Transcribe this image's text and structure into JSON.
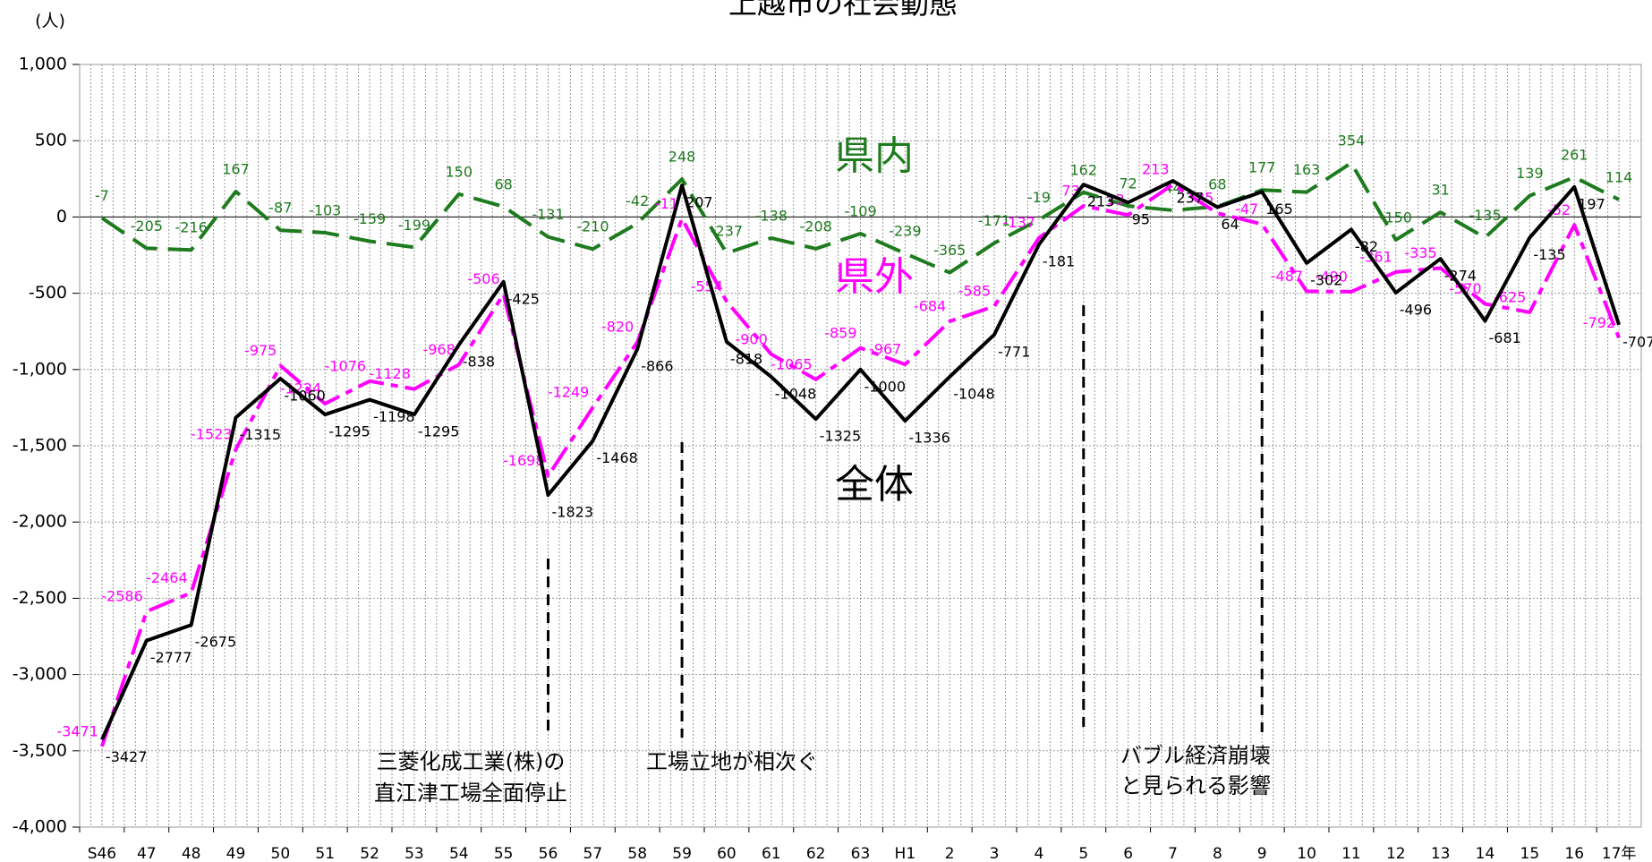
{
  "chart_data": {
    "type": "line",
    "title": "上越市の社会動態",
    "y_unit": "(人)",
    "categories": [
      "S46",
      "47",
      "48",
      "49",
      "50",
      "51",
      "52",
      "53",
      "54",
      "55",
      "56",
      "57",
      "58",
      "59",
      "60",
      "61",
      "62",
      "63",
      "H1",
      "2",
      "3",
      "4",
      "5",
      "6",
      "7",
      "8",
      "9",
      "10",
      "11",
      "12",
      "13",
      "14",
      "15",
      "16",
      "17年"
    ],
    "series": [
      {
        "name": "県内",
        "color": "#1e7b1e",
        "values": [
          -7,
          -205,
          -216,
          167,
          -87,
          -103,
          -159,
          -199,
          150,
          68,
          -131,
          -210,
          -42,
          248,
          -237,
          -138,
          -208,
          -109,
          -239,
          -365,
          -171,
          -19,
          162,
          72,
          44,
          68,
          177,
          163,
          354,
          -150,
          31,
          -135,
          139,
          261,
          114
        ]
      },
      {
        "name": "県外",
        "color": "#ff00ff",
        "values": [
          -3471,
          -2586,
          -2464,
          -1523,
          -975,
          -1224,
          -1076,
          -1128,
          -968,
          -506,
          -1698,
          -1249,
          -820,
          -11,
          -554,
          -900,
          -1065,
          -859,
          -967,
          -684,
          -585,
          -137,
          73,
          13,
          213,
          25,
          -47,
          -487,
          -490,
          -361,
          -335,
          -570,
          -625,
          -52,
          -792
        ]
      },
      {
        "name": "全体",
        "color": "#000000",
        "values": [
          -3427,
          -2777,
          -2675,
          -1315,
          -1060,
          -1295,
          -1198,
          -1295,
          -838,
          -425,
          -1823,
          -1468,
          -866,
          207,
          -818,
          -1048,
          -1325,
          -1000,
          -1336,
          -1048,
          -771,
          -181,
          213,
          95,
          237,
          64,
          165,
          -302,
          -82,
          -496,
          -274,
          -681,
          -135,
          197,
          -707
        ]
      }
    ],
    "ylim": [
      -4000,
      1000
    ],
    "yticks": [
      {
        "value": -4000,
        "label": "-4,000"
      },
      {
        "value": -3500,
        "label": "-3,500"
      },
      {
        "value": -3000,
        "label": "-3,000"
      },
      {
        "value": -2500,
        "label": "-2,500"
      },
      {
        "value": -2000,
        "label": "-2,000"
      },
      {
        "value": -1500,
        "label": "-1,500"
      },
      {
        "value": -1000,
        "label": "-1,000"
      },
      -500,
      0,
      500,
      {
        "value": 1000,
        "label": "1,000"
      }
    ],
    "grid": true,
    "annotations": [
      "三菱化成工業(株)の",
      "直江津工場全面停止",
      "工場立地が相次ぐ",
      "バブル経済崩壊",
      "と見られる影響"
    ]
  }
}
